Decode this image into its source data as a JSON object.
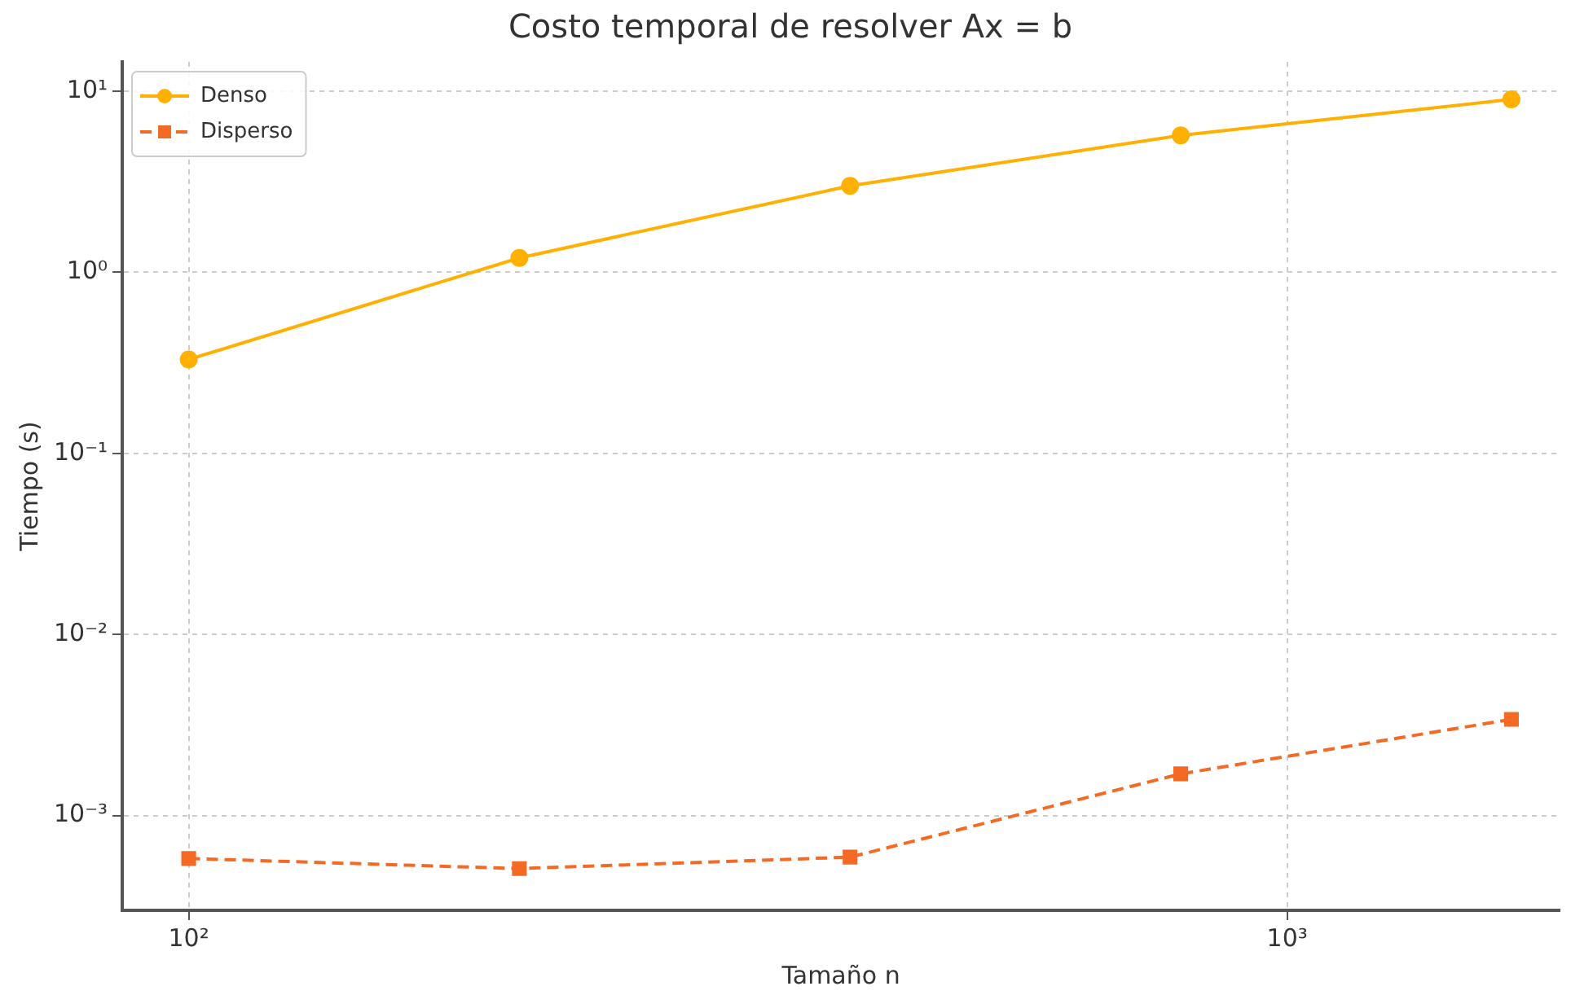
{
  "chart_data": {
    "type": "line",
    "title": "Costo temporal de resolver Ax = b",
    "xlabel": "Tamaño n",
    "ylabel": "Tiempo (s)",
    "x": [
      100,
      200,
      400,
      800,
      1600
    ],
    "series": [
      {
        "name": "Denso",
        "color": "#ffb000",
        "marker": "circle",
        "line_style": "solid",
        "values": [
          0.33,
          1.2,
          3.0,
          5.7,
          9.0
        ]
      },
      {
        "name": "Disperso",
        "color": "#f46a25",
        "marker": "square",
        "line_style": "dashed",
        "values": [
          0.00058,
          0.00051,
          0.00059,
          0.0017,
          0.0034
        ]
      }
    ],
    "log": "xy",
    "xlim": [
      87,
      1770
    ],
    "ylim": [
      0.00032,
      14.5
    ],
    "xticks": [
      {
        "value": 100,
        "label": "10²"
      },
      {
        "value": 1000,
        "label": "10³"
      }
    ],
    "yticks": [
      {
        "value": 0.001,
        "label": "10⁻³"
      },
      {
        "value": 0.01,
        "label": "10⁻²"
      },
      {
        "value": 0.1,
        "label": "10⁻¹"
      },
      {
        "value": 1,
        "label": "10⁰"
      },
      {
        "value": 10,
        "label": "10¹"
      }
    ],
    "grid": true,
    "legend": "top left"
  }
}
